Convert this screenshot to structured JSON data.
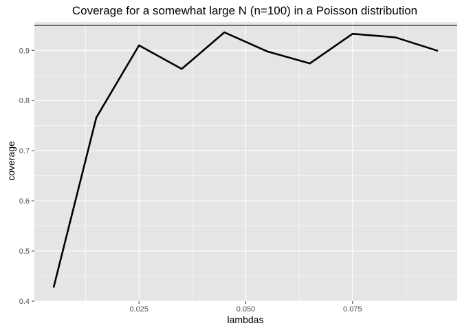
{
  "chart_data": {
    "type": "line",
    "title": "Coverage for a somewhat large N (n=100) in a Poisson distribution",
    "xlabel": "lambdas",
    "ylabel": "coverage",
    "x": [
      0.005,
      0.015,
      0.025,
      0.035,
      0.045,
      0.055,
      0.065,
      0.075,
      0.085,
      0.095
    ],
    "series": [
      {
        "values": [
          0.427,
          0.766,
          0.91,
          0.863,
          0.936,
          0.898,
          0.874,
          0.933,
          0.926,
          0.899
        ]
      }
    ],
    "reference_line": {
      "y": 0.95,
      "color": "#000000"
    },
    "xlim": [
      0.0005,
      0.0995
    ],
    "ylim": [
      0.4,
      0.95
    ],
    "x_ticks": [
      0.025,
      0.05,
      0.075
    ],
    "x_tick_labels": [
      "0.025",
      "0.050",
      "0.075"
    ],
    "y_ticks": [
      0.4,
      0.5,
      0.6,
      0.7,
      0.8,
      0.9
    ],
    "y_tick_labels": [
      "0.4",
      "0.5",
      "0.6",
      "0.7",
      "0.8",
      "0.9"
    ],
    "grid": true,
    "panel_color": "#e5e5e5",
    "grid_color": "#ffffff",
    "line_color": "#000000"
  }
}
